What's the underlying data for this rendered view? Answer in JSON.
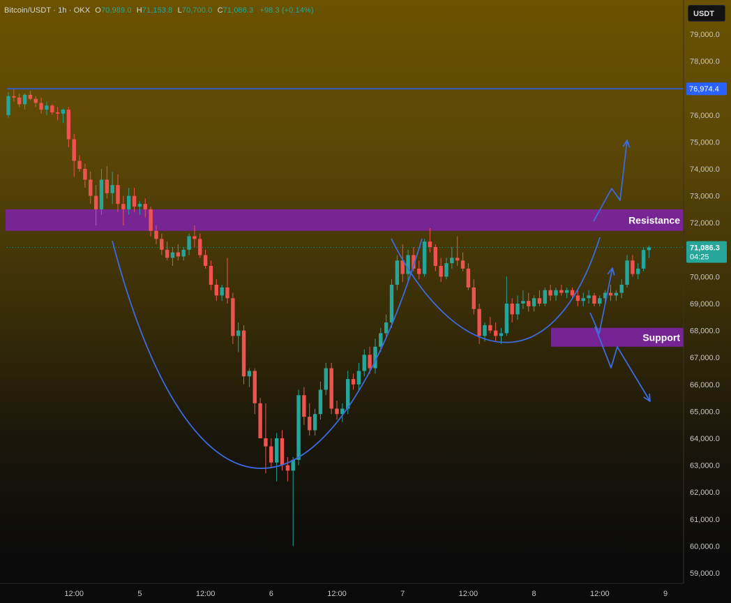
{
  "header": {
    "symbol": "Bitcoin/USDT · 1h · OKX",
    "open_label": "O",
    "open_value": "70,989.0",
    "high_label": "H",
    "high_value": "71,153.8",
    "low_label": "L",
    "low_value": "70,700.0",
    "close_label": "C",
    "close_value": "71,086.3",
    "change": "+98.3 (+0.14%)"
  },
  "currency_badge": "USDT",
  "last_price_label": {
    "price": "71,086.3",
    "countdown": "04:25"
  },
  "colors": {
    "up": "#26a69a",
    "down": "#ef5350",
    "resistance_zone": "#7b24a0",
    "support_zone": "#7b24a0",
    "annotation_line": "#3d6be0",
    "level_line": "#2962ff"
  },
  "chart_data": {
    "type": "candlestick",
    "title": "",
    "ylim": [
      58500,
      80000
    ],
    "y_ticks": [
      "59,000.0",
      "60,000.0",
      "61,000.0",
      "62,000.0",
      "63,000.0",
      "64,000.0",
      "65,000.0",
      "66,000.0",
      "67,000.0",
      "68,000.0",
      "69,000.0",
      "70,000.0",
      "71,000.0",
      "72,000.0",
      "73,000.0",
      "74,000.0",
      "75,000.0",
      "76,000.0",
      "77,000.0",
      "78,000.0",
      "79,000.0"
    ],
    "x_ticks": [
      {
        "label": "12:00",
        "index": 12
      },
      {
        "label": "5",
        "index": 24
      },
      {
        "label": "12:00",
        "index": 36
      },
      {
        "label": "6",
        "index": 48
      },
      {
        "label": "12:00",
        "index": 60
      },
      {
        "label": "7",
        "index": 72
      },
      {
        "label": "12:00",
        "index": 84
      },
      {
        "label": "8",
        "index": 96
      },
      {
        "label": "12:00",
        "index": 108
      },
      {
        "label": "9",
        "index": 120
      }
    ],
    "candles": [
      [
        76000,
        76850,
        75900,
        76700
      ],
      [
        76700,
        76950,
        76500,
        76650
      ],
      [
        76650,
        76800,
        76300,
        76400
      ],
      [
        76400,
        76800,
        76200,
        76750
      ],
      [
        76750,
        76900,
        76550,
        76600
      ],
      [
        76600,
        76700,
        76300,
        76450
      ],
      [
        76450,
        76650,
        76050,
        76200
      ],
      [
        76200,
        76500,
        76000,
        76350
      ],
      [
        76350,
        76400,
        76000,
        76100
      ],
      [
        76100,
        76300,
        75800,
        76050
      ],
      [
        76050,
        76250,
        75700,
        76200
      ],
      [
        76200,
        76300,
        74800,
        75100
      ],
      [
        75100,
        75300,
        73700,
        74300
      ],
      [
        74300,
        74500,
        73900,
        74000
      ],
      [
        74000,
        74200,
        73300,
        73600
      ],
      [
        73600,
        73900,
        72700,
        73000
      ],
      [
        73000,
        73400,
        71900,
        72500
      ],
      [
        72500,
        74000,
        72300,
        73600
      ],
      [
        73600,
        74100,
        72900,
        73100
      ],
      [
        73100,
        73900,
        72700,
        73400
      ],
      [
        73400,
        73800,
        72400,
        72700
      ],
      [
        72700,
        73000,
        71900,
        72500
      ],
      [
        72500,
        73300,
        72300,
        73000
      ],
      [
        73000,
        73300,
        72400,
        72600
      ],
      [
        72600,
        72800,
        72300,
        72700
      ],
      [
        72700,
        72900,
        72200,
        72500
      ],
      [
        72500,
        72600,
        71500,
        71700
      ],
      [
        71700,
        71900,
        71200,
        71400
      ],
      [
        71400,
        71600,
        70800,
        71000
      ],
      [
        71000,
        71300,
        70600,
        70700
      ],
      [
        70700,
        71100,
        70400,
        70900
      ],
      [
        70900,
        71200,
        70600,
        70750
      ],
      [
        70750,
        71100,
        70600,
        71000
      ],
      [
        71000,
        71600,
        70800,
        71500
      ],
      [
        71500,
        71900,
        71100,
        71400
      ],
      [
        71400,
        71600,
        70700,
        70800
      ],
      [
        70800,
        71000,
        70300,
        70400
      ],
      [
        70400,
        70600,
        69500,
        69700
      ],
      [
        69700,
        69900,
        69100,
        69300
      ],
      [
        69300,
        69700,
        69100,
        69600
      ],
      [
        69600,
        70700,
        69000,
        69200
      ],
      [
        69200,
        69400,
        67500,
        67800
      ],
      [
        67800,
        68300,
        67200,
        68000
      ],
      [
        68000,
        68200,
        66000,
        66300
      ],
      [
        66300,
        66600,
        65900,
        66500
      ],
      [
        66500,
        66600,
        64900,
        65300
      ],
      [
        65300,
        65500,
        64000,
        64000
      ],
      [
        64000,
        65300,
        62700,
        63700
      ],
      [
        63700,
        64000,
        62900,
        63100
      ],
      [
        63100,
        64200,
        62400,
        64000
      ],
      [
        64000,
        64300,
        62800,
        63000
      ],
      [
        63000,
        63300,
        62400,
        62800
      ],
      [
        62800,
        63300,
        60000,
        63200
      ],
      [
        63200,
        65800,
        63000,
        65600
      ],
      [
        65600,
        65900,
        64500,
        64800
      ],
      [
        64800,
        65300,
        64100,
        64300
      ],
      [
        64300,
        65100,
        64100,
        64900
      ],
      [
        64900,
        66100,
        64700,
        65800
      ],
      [
        65800,
        66800,
        65600,
        66600
      ],
      [
        66600,
        66800,
        64900,
        65100
      ],
      [
        65100,
        65400,
        64700,
        64900
      ],
      [
        64900,
        65300,
        64600,
        65100
      ],
      [
        65100,
        66500,
        64900,
        66200
      ],
      [
        66200,
        66400,
        65800,
        66000
      ],
      [
        66000,
        66800,
        65800,
        66500
      ],
      [
        66500,
        67300,
        66300,
        67100
      ],
      [
        67100,
        67400,
        66400,
        66600
      ],
      [
        66600,
        67700,
        66400,
        67400
      ],
      [
        67400,
        68100,
        67200,
        67900
      ],
      [
        67900,
        68600,
        67700,
        68300
      ],
      [
        68300,
        69900,
        68100,
        69700
      ],
      [
        69700,
        70800,
        69500,
        70600
      ],
      [
        70600,
        71200,
        69800,
        70100
      ],
      [
        70100,
        71000,
        69800,
        70800
      ],
      [
        70800,
        71100,
        70200,
        70300
      ],
      [
        70300,
        70600,
        69900,
        70100
      ],
      [
        70100,
        71400,
        70000,
        71300
      ],
      [
        71300,
        71800,
        70900,
        71100
      ],
      [
        71100,
        71200,
        70200,
        70400
      ],
      [
        70400,
        70700,
        69800,
        70000
      ],
      [
        70000,
        70700,
        69900,
        70500
      ],
      [
        70500,
        71100,
        70300,
        70700
      ],
      [
        70700,
        71500,
        70400,
        70600
      ],
      [
        70600,
        70900,
        70200,
        70300
      ],
      [
        70300,
        70500,
        69500,
        69600
      ],
      [
        69600,
        69900,
        68600,
        68800
      ],
      [
        68800,
        69000,
        67500,
        67800
      ],
      [
        67800,
        68300,
        67600,
        68200
      ],
      [
        68200,
        68500,
        67900,
        68000
      ],
      [
        68000,
        68300,
        67600,
        67800
      ],
      [
        67800,
        68100,
        67500,
        67900
      ],
      [
        67900,
        70000,
        67800,
        69000
      ],
      [
        69000,
        69200,
        68300,
        68600
      ],
      [
        68600,
        69300,
        68400,
        69000
      ],
      [
        69000,
        69500,
        68800,
        69100
      ],
      [
        69100,
        69400,
        68700,
        68900
      ],
      [
        68900,
        69300,
        68700,
        69200
      ],
      [
        69200,
        69500,
        68900,
        69000
      ],
      [
        69000,
        69600,
        68900,
        69500
      ],
      [
        69500,
        69700,
        69100,
        69300
      ],
      [
        69300,
        69600,
        69100,
        69500
      ],
      [
        69500,
        69700,
        69300,
        69400
      ],
      [
        69400,
        69600,
        69200,
        69500
      ],
      [
        69500,
        69600,
        69200,
        69300
      ],
      [
        69300,
        69500,
        68900,
        69100
      ],
      [
        69100,
        69400,
        68900,
        69200
      ],
      [
        69200,
        69500,
        69000,
        69300
      ],
      [
        69300,
        69400,
        68900,
        69000
      ],
      [
        69000,
        69300,
        68900,
        69200
      ],
      [
        69200,
        69500,
        69000,
        69400
      ],
      [
        69400,
        69700,
        69100,
        69300
      ],
      [
        69300,
        69500,
        69100,
        69400
      ],
      [
        69400,
        69900,
        69200,
        69700
      ],
      [
        69700,
        70800,
        69600,
        70600
      ],
      [
        70600,
        70800,
        70000,
        70100
      ],
      [
        70100,
        70500,
        69900,
        70300
      ],
      [
        70300,
        71100,
        70200,
        70989
      ],
      [
        70989,
        71153.8,
        70700,
        71086.3
      ]
    ],
    "levels": [
      {
        "price": 76974.4,
        "label": "76,974.4"
      }
    ],
    "zones": [
      {
        "name": "resistance",
        "from": 71700,
        "to": 72500,
        "label": "Resistance"
      },
      {
        "name": "support",
        "from": 67400,
        "to": 68100,
        "label": "Support"
      }
    ],
    "grid": false,
    "annotations": [
      "cup-arc (large rounded bottom)",
      "handle-arc (smaller rounded bottom)",
      "breakout arrow up",
      "breakdown arrow down",
      "bounce arrow"
    ]
  }
}
